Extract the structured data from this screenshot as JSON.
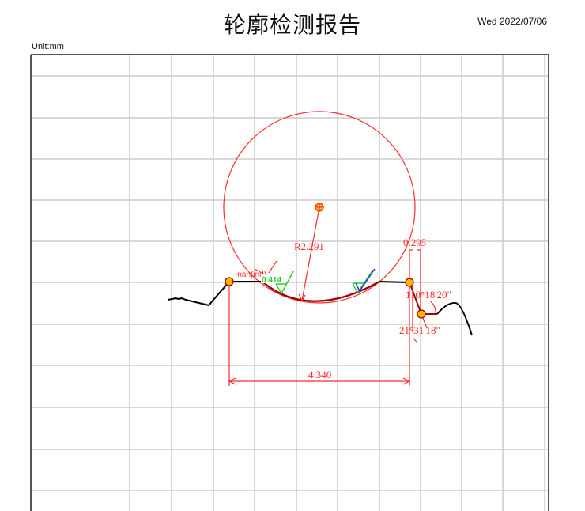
{
  "header": {
    "title": "轮廓检测报告",
    "date": "Wed 2022/07/06",
    "unit": "Unit:mm"
  },
  "annotations": {
    "radius": "R2.291",
    "width": "4.340",
    "offset": "0.295",
    "angle_top": "110°18'20\"",
    "angle_bottom": "21°31'18\"",
    "nan_label": "-nan(ind)",
    "green_value": "0.414"
  },
  "colors": {
    "dimension": "#ff2a2a",
    "profile": "#000000",
    "arc": "#a00000",
    "point_fill": "#ffb400",
    "green": "#22cc22",
    "blue": "#2a2aff",
    "grid": "#cccccc"
  }
}
